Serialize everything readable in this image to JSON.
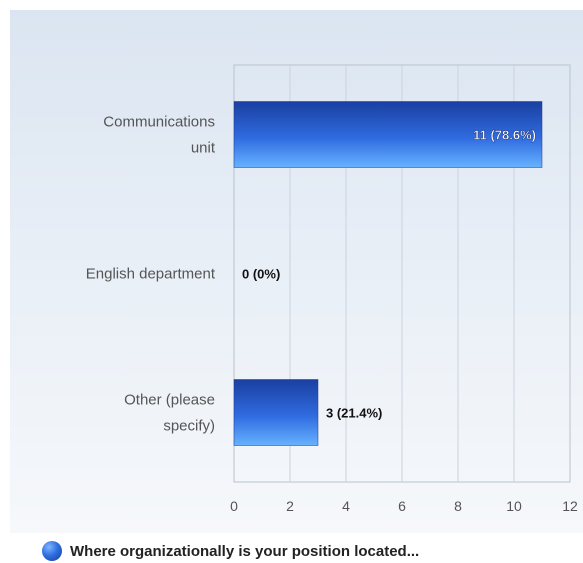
{
  "chart_data": {
    "type": "bar",
    "orientation": "horizontal",
    "categories": [
      [
        "Communications",
        "unit"
      ],
      [
        "English department"
      ],
      [
        "Other (please",
        "specify)"
      ]
    ],
    "values": [
      11,
      0,
      3
    ],
    "data_labels": [
      "11 (78.6%)",
      "0 (0%)",
      "3 (21.4%)"
    ],
    "series": [
      {
        "name": "Where organizationally is your position located...",
        "values": [
          11,
          0,
          3
        ]
      }
    ],
    "xlim": [
      0,
      12
    ],
    "xticks": [
      "0",
      "2",
      "4",
      "6",
      "8",
      "10",
      "12"
    ],
    "grid": true,
    "legend": "bottom-left",
    "colors": {
      "bar_top": "#1a3fa0",
      "bar_bottom": "#5aa8ff",
      "grid": "#c9d3df",
      "axis": "#b8c2cc"
    }
  }
}
